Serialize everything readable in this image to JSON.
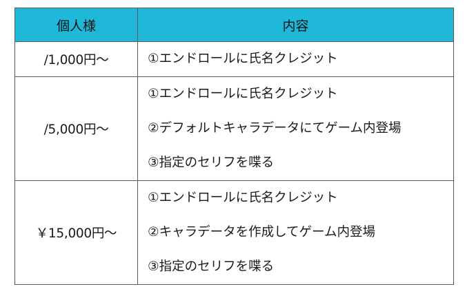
{
  "header": {
    "col1": "個人様",
    "col2": "内容"
  },
  "rows": [
    {
      "price": "/1,000円～",
      "items": [
        "①エンドロールに氏名クレジット"
      ]
    },
    {
      "price": "/5,000円～",
      "items": [
        "①エンドロールに氏名クレジット",
        "②デフォルトキャラデータにてゲーム内登場",
        "③指定のセリフを喋る"
      ]
    },
    {
      "price": "￥15,000円～",
      "items": [
        "①エンドロールに氏名クレジット",
        "②キャラデータを作成してゲーム内登場",
        "③指定のセリフを喋る"
      ]
    }
  ],
  "colors": {
    "header_bg": "#1fb8d9",
    "border": "#5a5a5a"
  }
}
